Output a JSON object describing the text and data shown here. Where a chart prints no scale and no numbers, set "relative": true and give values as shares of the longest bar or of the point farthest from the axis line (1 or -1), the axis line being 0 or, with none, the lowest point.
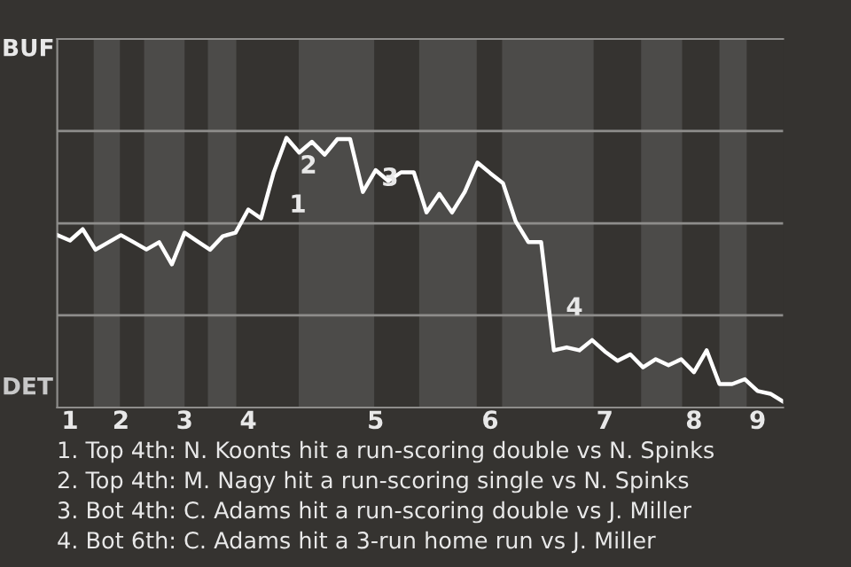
{
  "chart_data": {
    "type": "line",
    "relative": true,
    "categories": [
      null,
      "1",
      null,
      null,
      null,
      "2",
      null,
      null,
      null,
      null,
      "3",
      null,
      null,
      null,
      null,
      "4",
      null,
      null,
      null,
      null,
      null,
      null,
      null,
      null,
      null,
      "5",
      null,
      null,
      null,
      null,
      null,
      null,
      null,
      null,
      "6",
      null,
      null,
      null,
      null,
      null,
      null,
      null,
      null,
      "7",
      null,
      null,
      null,
      null,
      null,
      null,
      "8",
      null,
      null,
      null,
      null,
      "9",
      null,
      null
    ],
    "series": [
      {
        "color": "#ffffff",
        "values": [
          0.639,
          0.619,
          0.661,
          0.585,
          0.612,
          0.639,
          0.613,
          0.586,
          0.613,
          0.531,
          0.648,
          0.616,
          0.585,
          0.635,
          0.648,
          0.734,
          0.701,
          0.872,
          1,
          0.945,
          0.985,
          0.937,
          0.995,
          0.995,
          0.799,
          0.88,
          0.84,
          0.872,
          0.872,
          0.723,
          0.792,
          0.723,
          0.799,
          0.908,
          0.869,
          0.832,
          0.69,
          0.613,
          0.613,
          0.212,
          0.223,
          0.212,
          0.25,
          0.208,
          0.173,
          0.197,
          0.149,
          0.179,
          0.157,
          0.179,
          0.131,
          0.212,
          0.087,
          0.087,
          0.105,
          0.061,
          0.051,
          0.022
        ]
      }
    ],
    "ref_lines": [
      {
        "axis": "y",
        "value": 0.342,
        "color": "#8e8d8b"
      },
      {
        "axis": "y",
        "value": 0.683,
        "color": "#8e8d8b"
      },
      {
        "axis": "y",
        "value": 1.025,
        "color": "#8e8d8b"
      }
    ],
    "marker": "none",
    "line_style": "solid",
    "annotations": [
      "BUF",
      "DET",
      "1",
      "2",
      "3",
      "4",
      "1. Top 4th: N. Koonts hit a run-scoring double vs N. Spinks",
      "2. Top 4th: M. Nagy hit a run-scoring single vs N. Spinks",
      "3. Bot 4th: C. Adams hit a run-scoring double vs J. Miller",
      "4. Bot 6th: C. Adams hit a 3-run home run vs J. Miller"
    ]
  }
}
